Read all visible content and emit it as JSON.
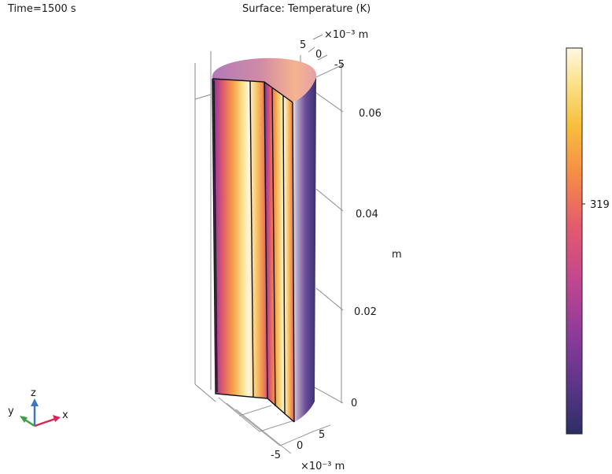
{
  "header": {
    "time": "Time=1500 s",
    "title": "Surface: Temperature (K)"
  },
  "axes": {
    "top_x_unit": "×10⁻³ m",
    "top_x_ticks": [
      "5",
      "0",
      "-5"
    ],
    "z_ticks": [
      "0.06",
      "0.04",
      "0.02",
      "0"
    ],
    "z_unit": "m",
    "bottom_ticks_right": [
      "5",
      "0"
    ],
    "bottom_ticks_left": [
      "-5"
    ],
    "bottom_unit": "×10⁻³ m"
  },
  "triad": {
    "x": "x",
    "y": "y",
    "z": "z"
  },
  "colorbar": {
    "tick_label": "319",
    "colormap": [
      "#2c2e64",
      "#5a3587",
      "#8e3b9a",
      "#c2478f",
      "#e45b6e",
      "#f58b47",
      "#f7bf3d",
      "#fbe28a",
      "#fff8e4"
    ]
  }
}
